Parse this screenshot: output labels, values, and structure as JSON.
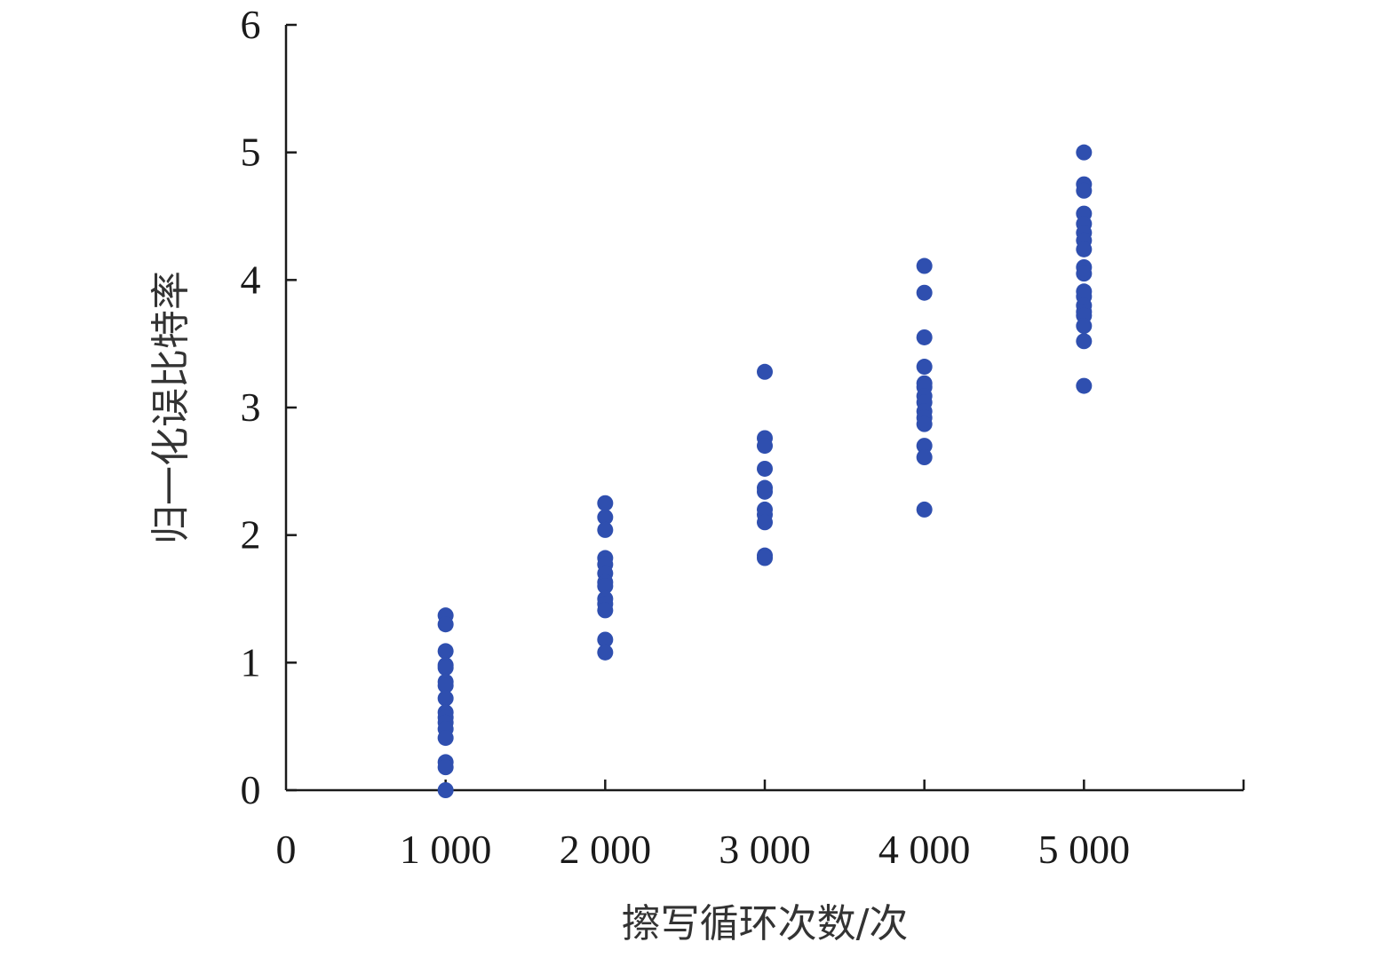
{
  "chart_data": {
    "type": "scatter",
    "xlabel": "擦写循环次数/次",
    "ylabel": "归一化误比特率",
    "xlim": [
      0,
      6000
    ],
    "ylim": [
      0,
      6
    ],
    "x_ticks": [
      0,
      1000,
      2000,
      3000,
      4000,
      5000
    ],
    "x_tick_labels": [
      "0",
      "1 000",
      "2 000",
      "3 000",
      "4 000",
      "5 000"
    ],
    "y_ticks": [
      0,
      1,
      2,
      3,
      4,
      5,
      6
    ],
    "y_tick_labels": [
      "0",
      "1",
      "2",
      "3",
      "4",
      "5",
      "6"
    ],
    "grid": false,
    "legend": "none",
    "marker_color": "#2f4faf",
    "series": [
      {
        "x": 1000,
        "values": [
          1.37,
          1.3,
          1.09,
          0.98,
          0.96,
          0.85,
          0.82,
          0.72,
          0.61,
          0.57,
          0.53,
          0.48,
          0.41,
          0.22,
          0.18,
          0.0
        ]
      },
      {
        "x": 2000,
        "values": [
          2.25,
          2.14,
          2.04,
          1.82,
          1.77,
          1.7,
          1.63,
          1.6,
          1.5,
          1.46,
          1.41,
          1.18,
          1.08
        ]
      },
      {
        "x": 3000,
        "values": [
          3.28,
          2.76,
          2.7,
          2.52,
          2.37,
          2.34,
          2.2,
          2.16,
          2.1,
          1.84,
          1.82
        ]
      },
      {
        "x": 4000,
        "values": [
          4.11,
          3.9,
          3.55,
          3.32,
          3.19,
          3.16,
          3.09,
          3.04,
          2.97,
          2.92,
          2.87,
          2.7,
          2.61,
          2.2
        ]
      },
      {
        "x": 5000,
        "values": [
          5.0,
          4.75,
          4.7,
          4.52,
          4.44,
          4.37,
          4.31,
          4.24,
          4.1,
          4.05,
          3.91,
          3.87,
          3.8,
          3.75,
          3.72,
          3.64,
          3.52,
          3.17
        ]
      }
    ]
  }
}
